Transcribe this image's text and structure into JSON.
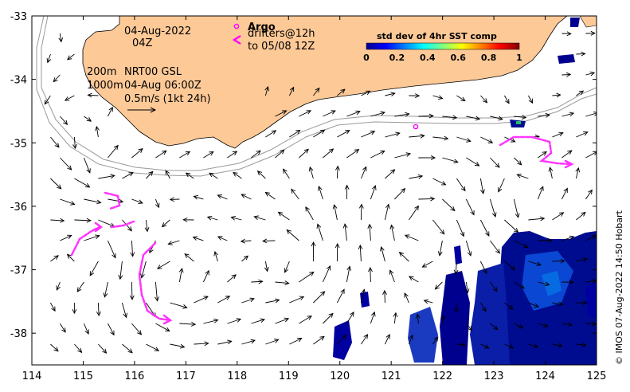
{
  "map": {
    "date_label": "04-Aug-2022",
    "time_label": "04Z",
    "depth_shallow_label": "200m",
    "depth_deep_label": "1000m",
    "product_label": "NRT00 GSL",
    "product_time_label": "04-Aug 06:00Z",
    "scale_label": "0.5m/s (1kt 24h)",
    "argo_label": "Argo",
    "drifters_label": "drifters@12h",
    "drifters_to_label": "to 05/08 12Z",
    "credit": "© IMOS 07-Aug-2022 14:50 Hobart",
    "x_ticks": [
      "114",
      "115",
      "116",
      "117",
      "118",
      "119",
      "120",
      "121",
      "122",
      "123",
      "124",
      "125"
    ],
    "y_ticks": [
      "-33",
      "-34",
      "-35",
      "-36",
      "-37",
      "-38"
    ],
    "colors": {
      "land": "#fdc997",
      "argo": "#ff00ff",
      "drifter": "#ff33ff",
      "sst_low": "#00008f",
      "sst_mid": "#00a0ff"
    }
  },
  "colorbar": {
    "title": "std dev of 4hr SST comp",
    "ticks": [
      "0",
      "0.2",
      "0.4",
      "0.6",
      "0.8",
      "1"
    ]
  }
}
